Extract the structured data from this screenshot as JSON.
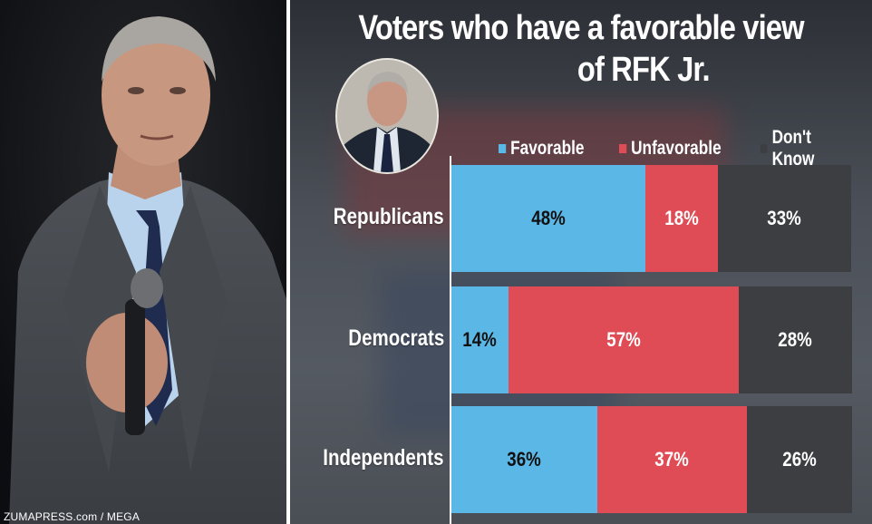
{
  "photo": {
    "credit": "ZUMAPRESS.com / MEGA"
  },
  "chart_data": {
    "type": "bar",
    "stacked": true,
    "orientation": "horizontal",
    "title_line1": "Voters who have a favorable view",
    "title_line2": "of RFK Jr.",
    "categories": [
      "Republicans",
      "Democrats",
      "Independents"
    ],
    "series": [
      {
        "name": "Favorable",
        "values": [
          48,
          14,
          36
        ],
        "color": "#5bb8e6"
      },
      {
        "name": "Unfavorable",
        "values": [
          18,
          57,
          37
        ],
        "color": "#e04c55"
      },
      {
        "name": "Don't Know",
        "values": [
          33,
          28,
          26
        ],
        "color": "#3d3e42"
      }
    ],
    "value_suffix": "%",
    "legend_position": "top"
  },
  "colors": {
    "favorable": "#5bb8e6",
    "unfavorable": "#e04c55",
    "dont_know": "#3d3e42"
  }
}
